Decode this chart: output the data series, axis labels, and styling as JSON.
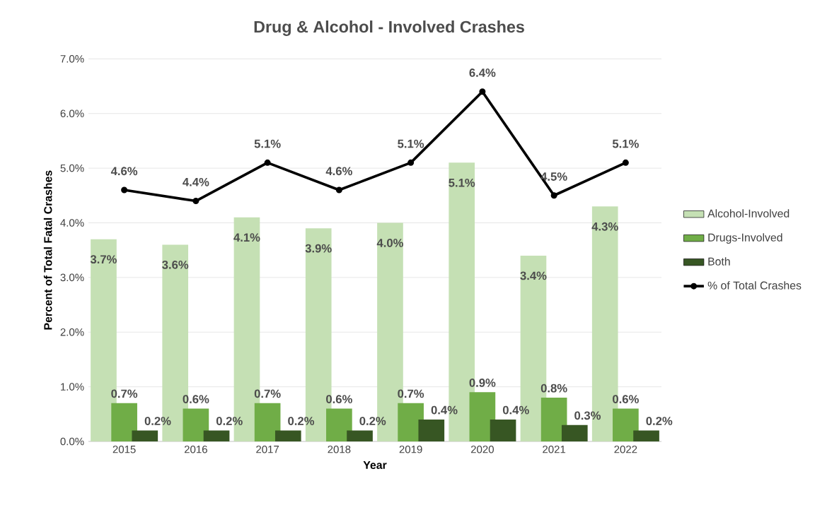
{
  "chart_data": {
    "type": "bar",
    "title": "Drug & Alcohol - Involved Crashes",
    "xlabel": "Year",
    "ylabel": "Percent of Total Fatal Crashes",
    "categories": [
      "2015",
      "2016",
      "2017",
      "2018",
      "2019",
      "2020",
      "2021",
      "2022"
    ],
    "series": [
      {
        "name": "Alcohol-Involved",
        "color": "#c5e0b4",
        "values": [
          3.7,
          3.6,
          4.1,
          3.9,
          4.0,
          5.1,
          3.4,
          4.3
        ],
        "value_labels": [
          "3.7%",
          "3.6%",
          "4.1%",
          "3.9%",
          "4.0%",
          "5.1%",
          "3.4%",
          "4.3%"
        ]
      },
      {
        "name": "Drugs-Involved",
        "color": "#70ad47",
        "values": [
          0.7,
          0.6,
          0.7,
          0.6,
          0.7,
          0.9,
          0.8,
          0.6
        ],
        "value_labels": [
          "0.7%",
          "0.6%",
          "0.7%",
          "0.6%",
          "0.7%",
          "0.9%",
          "0.8%",
          "0.6%"
        ]
      },
      {
        "name": "Both",
        "color": "#375623",
        "values": [
          0.2,
          0.2,
          0.2,
          0.2,
          0.4,
          0.4,
          0.3,
          0.2
        ],
        "value_labels": [
          "0.2%",
          "0.2%",
          "0.2%",
          "0.2%",
          "0.4%",
          "0.4%",
          "0.3%",
          "0.2%"
        ]
      },
      {
        "name": "% of Total Crashes",
        "type": "line",
        "color": "#000000",
        "marker": "circle",
        "values": [
          4.6,
          4.4,
          5.1,
          4.6,
          5.1,
          6.4,
          4.5,
          5.1
        ],
        "value_labels": [
          "4.6%",
          "4.4%",
          "5.1%",
          "4.6%",
          "5.1%",
          "6.4%",
          "4.5%",
          "5.1%"
        ]
      }
    ],
    "ylim": [
      0,
      7
    ],
    "yticks": [
      {
        "value": 0,
        "label": "0.0%"
      },
      {
        "value": 1,
        "label": "1.0%"
      },
      {
        "value": 2,
        "label": "2.0%"
      },
      {
        "value": 3,
        "label": "3.0%"
      },
      {
        "value": 4,
        "label": "4.0%"
      },
      {
        "value": 5,
        "label": "5.0%"
      },
      {
        "value": 6,
        "label": "6.0%"
      },
      {
        "value": 7,
        "label": "7.0%"
      }
    ],
    "grid": "y",
    "legend": "right"
  }
}
